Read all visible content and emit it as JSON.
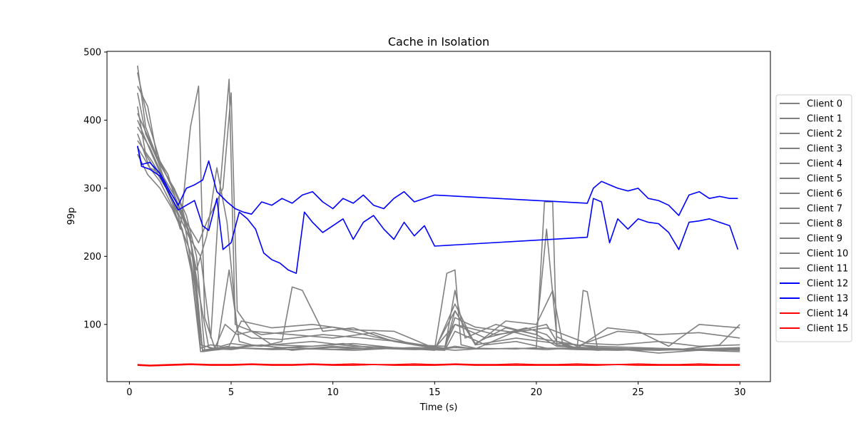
{
  "chart_data": {
    "type": "line",
    "title": "Cache in  Isolation",
    "xlabel": "Time (s)",
    "ylabel": "99p",
    "xlim": [
      -1.1,
      31.5
    ],
    "ylim": [
      16,
      501
    ],
    "xticks": [
      0,
      5,
      10,
      15,
      20,
      25,
      30
    ],
    "yticks": [
      100,
      200,
      300,
      400,
      500
    ],
    "grid": false,
    "legend_position": "right",
    "series": [
      {
        "name": "Client 0",
        "color": "#808080",
        "x": [
          0.4,
          0.8,
          1.2,
          1.8,
          2.4,
          3.0,
          3.5,
          4.0,
          5.0,
          6.0,
          8.0,
          10.0,
          12.0,
          14.0,
          15.5,
          16.0,
          17.0,
          20.0,
          22.5,
          25.0,
          28.0,
          30.0
        ],
        "values": [
          420,
          350,
          330,
          300,
          260,
          190,
          60,
          63,
          65,
          65,
          63,
          66,
          64,
          66,
          65,
          68,
          64,
          65,
          65,
          63,
          64,
          66
        ]
      },
      {
        "name": "Client 1",
        "color": "#808080",
        "x": [
          0.4,
          0.9,
          1.5,
          2.1,
          2.7,
          3.2,
          3.6,
          4.2,
          4.9,
          5.5,
          7.0,
          9.0,
          11.0,
          13.0,
          15.0,
          16.0,
          18.0,
          20.5,
          22.5,
          24.0,
          26.0,
          28.0,
          30.0
        ],
        "values": [
          470,
          400,
          340,
          300,
          250,
          160,
          62,
          65,
          68,
          105,
          95,
          100,
          92,
          90,
          65,
          100,
          85,
          95,
          72,
          70,
          75,
          68,
          70
        ]
      },
      {
        "name": "Client 2",
        "color": "#808080",
        "x": [
          0.4,
          1.0,
          1.6,
          2.2,
          2.8,
          3.4,
          3.8,
          4.6,
          5.0,
          5.3,
          6.0,
          8.0,
          10.0,
          12.0,
          14.0,
          15.5,
          16.0,
          17.0,
          19.0,
          21.0,
          23.0,
          25.0,
          27.0,
          30.0
        ],
        "values": [
          380,
          330,
          320,
          290,
          250,
          220,
          250,
          300,
          440,
          120,
          90,
          85,
          80,
          88,
          70,
          65,
          120,
          70,
          80,
          72,
          68,
          66,
          64,
          62
        ]
      },
      {
        "name": "Client 3",
        "color": "#808080",
        "x": [
          0.4,
          0.9,
          1.4,
          2.0,
          2.5,
          3.0,
          3.4,
          3.7,
          4.2,
          4.8,
          5.4,
          6.5,
          8.0,
          10.0,
          12.0,
          14.0,
          15.0,
          16.0,
          17.5,
          19.0,
          20.5,
          22.0,
          24.0,
          26.0,
          28.0,
          30.0
        ],
        "values": [
          450,
          420,
          340,
          290,
          240,
          390,
          450,
          110,
          65,
          64,
          66,
          70,
          62,
          68,
          64,
          66,
          63,
          66,
          64,
          65,
          63,
          66,
          64,
          58,
          62,
          65
        ]
      },
      {
        "name": "Client 4",
        "color": "#808080",
        "x": [
          0.4,
          1.0,
          1.5,
          2.0,
          2.6,
          3.1,
          3.5,
          4.0,
          4.5,
          5.0,
          5.5,
          6.5,
          7.5,
          8.0,
          8.5,
          9.5,
          11.0,
          13.0,
          15.0,
          16.0,
          17.0,
          19.0,
          20.5,
          21.0,
          22.0,
          23.0,
          25.0,
          27.0,
          29.0,
          30.0
        ],
        "values": [
          360,
          330,
          310,
          280,
          240,
          170,
          65,
          70,
          68,
          72,
          70,
          68,
          75,
          155,
          150,
          90,
          95,
          75,
          65,
          62,
          64,
          90,
          100,
          75,
          65,
          62,
          65,
          63,
          70,
          100
        ]
      },
      {
        "name": "Client 5",
        "color": "#808080",
        "x": [
          0.4,
          1.1,
          1.7,
          2.3,
          2.9,
          3.5,
          4.0,
          4.4,
          4.9,
          5.2,
          5.6,
          6.5,
          8.0,
          10.0,
          12.0,
          14.0,
          15.5,
          16.0,
          17.5,
          19.5,
          20.5,
          21.0,
          22.0,
          22.3,
          22.5,
          23.0,
          25.0,
          27.0,
          30.0
        ],
        "values": [
          400,
          350,
          310,
          270,
          230,
          200,
          80,
          280,
          460,
          100,
          95,
          85,
          90,
          96,
          82,
          70,
          68,
          100,
          80,
          95,
          85,
          70,
          65,
          150,
          148,
          65,
          62,
          64,
          62
        ]
      },
      {
        "name": "Client 6",
        "color": "#808080",
        "x": [
          0.4,
          0.8,
          1.3,
          1.9,
          2.4,
          3.0,
          3.5,
          4.1,
          4.6,
          5.1,
          5.6,
          7.0,
          9.0,
          11.0,
          13.0,
          15.0,
          15.6,
          16.0,
          16.3,
          17.0,
          19.0,
          20.0,
          20.4,
          20.8,
          21.0,
          22.0,
          24.0,
          26.0,
          28.0,
          30.0
        ],
        "values": [
          480,
          390,
          350,
          320,
          270,
          230,
          70,
          65,
          66,
          67,
          65,
          63,
          64,
          62,
          65,
          64,
          175,
          180,
          70,
          65,
          64,
          66,
          280,
          280,
          70,
          64,
          63,
          62,
          64,
          65
        ]
      },
      {
        "name": "Client 7",
        "color": "#808080",
        "x": [
          0.4,
          1.0,
          1.6,
          2.2,
          2.8,
          3.3,
          3.8,
          4.3,
          4.8,
          5.3,
          6.0,
          7.5,
          9.5,
          11.5,
          13.5,
          15.5,
          16.0,
          16.5,
          18.0,
          20.0,
          20.5,
          21.0,
          22.0,
          24.0,
          26.0,
          28.0,
          30.0
        ],
        "values": [
          390,
          360,
          320,
          290,
          250,
          180,
          230,
          330,
          250,
          90,
          80,
          78,
          85,
          80,
          74,
          65,
          150,
          80,
          100,
          85,
          240,
          82,
          68,
          90,
          85,
          88,
          80
        ]
      },
      {
        "name": "Client 8",
        "color": "#808080",
        "x": [
          0.4,
          0.9,
          1.5,
          2.1,
          2.7,
          3.2,
          3.6,
          4.1,
          4.7,
          5.2,
          5.7,
          7.0,
          9.0,
          11.0,
          13.0,
          15.0,
          16.0,
          17.0,
          18.5,
          20.0,
          20.8,
          21.3,
          22.0,
          23.5,
          25.0,
          26.5,
          28.0,
          30.0
        ],
        "values": [
          350,
          320,
          300,
          270,
          230,
          190,
          60,
          62,
          64,
          66,
          68,
          70,
          68,
          72,
          66,
          62,
          130,
          70,
          105,
          100,
          150,
          70,
          65,
          95,
          90,
          68,
          100,
          95
        ]
      },
      {
        "name": "Client 9",
        "color": "#808080",
        "x": [
          0.4,
          1.0,
          1.6,
          2.2,
          2.8,
          3.3,
          3.7,
          4.3,
          4.9,
          5.4,
          6.0,
          7.5,
          9.0,
          10.5,
          12.0,
          14.0,
          15.5,
          16.0,
          17.0,
          18.0,
          19.0,
          20.0,
          21.0,
          22.0,
          23.0,
          25.0,
          27.0,
          29.0,
          30.0
        ],
        "values": [
          410,
          370,
          330,
          300,
          260,
          200,
          62,
          64,
          180,
          75,
          70,
          66,
          68,
          72,
          65,
          63,
          64,
          110,
          96,
          92,
          88,
          80,
          75,
          70,
          66,
          64,
          63,
          64,
          65
        ]
      },
      {
        "name": "Client 10",
        "color": "#808080",
        "x": [
          0.4,
          1.1,
          1.7,
          2.3,
          2.9,
          3.4,
          3.9,
          4.4,
          5.0,
          5.5,
          6.5,
          8.0,
          10.0,
          12.0,
          14.0,
          15.5,
          16.0,
          17.5,
          19.0,
          20.5,
          22.0,
          24.0,
          26.0,
          28.0,
          30.0
        ],
        "values": [
          370,
          340,
          310,
          280,
          240,
          150,
          66,
          64,
          63,
          65,
          64,
          66,
          63,
          65,
          64,
          62,
          90,
          70,
          75,
          65,
          63,
          62,
          64,
          63,
          64
        ]
      },
      {
        "name": "Client 11",
        "color": "#808080",
        "x": [
          0.4,
          0.8,
          1.4,
          2.0,
          2.6,
          3.1,
          3.6,
          4.2,
          4.7,
          5.3,
          6.0,
          7.0,
          9.0,
          11.0,
          13.0,
          15.0,
          16.0,
          17.0,
          18.5,
          20.0,
          21.0,
          22.5,
          24.0,
          26.0,
          28.0,
          30.0
        ],
        "values": [
          440,
          380,
          340,
          310,
          270,
          210,
          62,
          65,
          100,
          85,
          90,
          70,
          75,
          68,
          66,
          64,
          120,
          72,
          95,
          85,
          68,
          66,
          64,
          63,
          62,
          60
        ]
      },
      {
        "name": "Client 12",
        "color": "#0000ff",
        "x": [
          0.4,
          0.6,
          1.0,
          1.5,
          2.0,
          2.4,
          2.8,
          3.2,
          3.6,
          3.9,
          4.3,
          4.8,
          5.2,
          5.6,
          6.0,
          6.5,
          7.0,
          7.5,
          8.0,
          8.5,
          9.0,
          9.5,
          10.0,
          10.5,
          11.0,
          11.5,
          12.0,
          12.5,
          13.0,
          13.5,
          14.0,
          14.5,
          15.0,
          22.5,
          22.8,
          23.2,
          23.6,
          24.0,
          24.5,
          25.0,
          25.5,
          26.0,
          26.5,
          27.0,
          27.5,
          28.0,
          28.5,
          29.0,
          29.5,
          29.9
        ],
        "values": [
          362,
          335,
          338,
          322,
          295,
          275,
          300,
          305,
          312,
          340,
          295,
          280,
          270,
          265,
          262,
          280,
          275,
          285,
          278,
          290,
          295,
          280,
          270,
          285,
          278,
          290,
          275,
          270,
          285,
          295,
          280,
          285,
          290,
          278,
          300,
          310,
          305,
          300,
          296,
          300,
          285,
          282,
          275,
          260,
          290,
          295,
          285,
          288,
          285,
          285
        ]
      },
      {
        "name": "Client 13",
        "color": "#0000ff",
        "x": [
          0.4,
          0.6,
          1.0,
          1.5,
          2.0,
          2.4,
          2.8,
          3.2,
          3.6,
          3.9,
          4.3,
          4.6,
          5.0,
          5.4,
          5.8,
          6.2,
          6.6,
          7.0,
          7.4,
          7.8,
          8.2,
          8.6,
          9.0,
          9.5,
          10.0,
          10.5,
          11.0,
          11.5,
          12.0,
          12.5,
          13.0,
          13.5,
          14.0,
          14.5,
          15.0,
          22.5,
          22.8,
          23.2,
          23.6,
          24.0,
          24.5,
          25.0,
          25.5,
          26.0,
          26.5,
          27.0,
          27.5,
          28.0,
          28.5,
          29.0,
          29.5,
          29.9
        ],
        "values": [
          362,
          332,
          328,
          318,
          290,
          268,
          275,
          282,
          245,
          238,
          285,
          210,
          220,
          265,
          255,
          240,
          205,
          195,
          190,
          180,
          175,
          265,
          250,
          235,
          245,
          255,
          225,
          250,
          260,
          240,
          225,
          250,
          230,
          245,
          215,
          228,
          285,
          280,
          220,
          255,
          240,
          255,
          250,
          248,
          235,
          210,
          250,
          252,
          255,
          250,
          245,
          210
        ]
      },
      {
        "name": "Client 14",
        "color": "#ff0000",
        "x": [
          0.4,
          1.0,
          2.0,
          3.0,
          4.0,
          5.0,
          6.0,
          7.0,
          8.0,
          9.0,
          10.0,
          11.0,
          12.0,
          13.0,
          14.0,
          15.0,
          16.0,
          17.0,
          18.0,
          19.0,
          20.0,
          21.0,
          22.0,
          23.0,
          24.0,
          25.0,
          26.0,
          27.0,
          28.0,
          29.0,
          30.0
        ],
        "values": [
          41,
          40,
          41,
          42,
          41,
          41,
          42,
          41,
          41,
          42,
          41,
          42,
          41,
          41,
          42,
          41,
          42,
          41,
          41,
          42,
          41,
          41,
          42,
          41,
          41,
          42,
          41,
          41,
          42,
          41,
          41
        ]
      },
      {
        "name": "Client 15",
        "color": "#ff0000",
        "x": [
          0.4,
          1.0,
          2.0,
          3.0,
          4.0,
          5.0,
          6.0,
          7.0,
          8.0,
          9.0,
          10.0,
          11.0,
          12.0,
          13.0,
          14.0,
          15.0,
          16.0,
          17.0,
          18.0,
          19.0,
          20.0,
          21.0,
          22.0,
          23.0,
          24.0,
          25.0,
          26.0,
          27.0,
          28.0,
          29.0,
          30.0
        ],
        "values": [
          40,
          39,
          40,
          41,
          40,
          40,
          41,
          40,
          40,
          41,
          40,
          40,
          41,
          40,
          40,
          40,
          41,
          40,
          40,
          40,
          40,
          40,
          40,
          40,
          41,
          40,
          40,
          40,
          40,
          40,
          40
        ]
      }
    ]
  }
}
